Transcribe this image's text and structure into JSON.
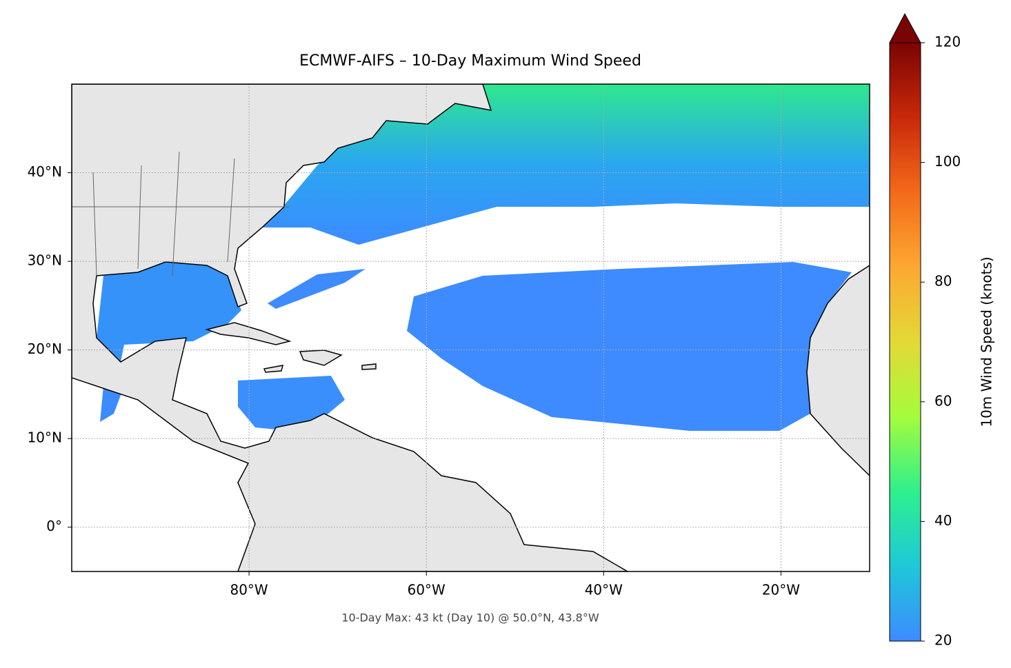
{
  "chart_data": {
    "type": "map",
    "title": "ECMWF-AIFS – 10-Day Maximum Wind Speed",
    "annotation": "10-Day Max: 43 kt (Day 10) @ 50.0°N, 43.8°W",
    "xlim": [
      -100,
      -10
    ],
    "ylim": [
      -5,
      50
    ],
    "xticks": [
      {
        "value": -80,
        "label": "80°W"
      },
      {
        "value": -60,
        "label": "60°W"
      },
      {
        "value": -40,
        "label": "40°W"
      },
      {
        "value": -20,
        "label": "20°W"
      }
    ],
    "yticks": [
      {
        "value": 0,
        "label": "0°"
      },
      {
        "value": 10,
        "label": "10°N"
      },
      {
        "value": 20,
        "label": "20°N"
      },
      {
        "value": 30,
        "label": "30°N"
      },
      {
        "value": 40,
        "label": "40°N"
      }
    ],
    "grid": true,
    "colorbar": {
      "label": "10m Wind Speed (knots)",
      "lim": [
        20,
        120
      ],
      "ticks": [
        20,
        40,
        60,
        80,
        100,
        120
      ],
      "colors": [
        "#3d8bff",
        "#1ec8d8",
        "#2ef08c",
        "#a4fc3c",
        "#e3d936",
        "#fca832",
        "#f36a1a",
        "#c9290a",
        "#7a0403"
      ]
    }
  }
}
